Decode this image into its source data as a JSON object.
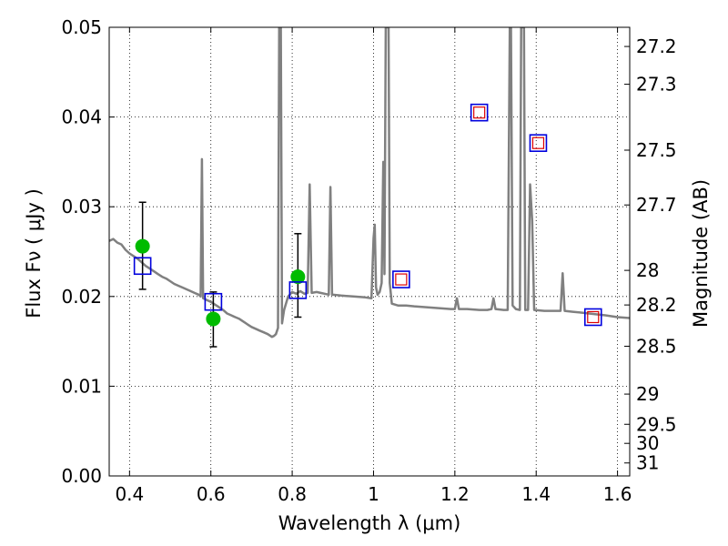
{
  "chart_data": {
    "type": "line",
    "xlabel": "Wavelength  λ (μm)",
    "ylabel": "Flux  Fν  ( μJy )",
    "ylabel_right": "Magnitude (AB)",
    "xlim": [
      0.35,
      1.63
    ],
    "ylim": [
      0.0,
      0.05
    ],
    "grid": true,
    "x_ticks": [
      0.4,
      0.6,
      0.8,
      1.0,
      1.2,
      1.4,
      1.6
    ],
    "x_tick_labels": [
      "0.4",
      "0.6",
      "0.8",
      "1",
      "1.2",
      "1.4",
      "1.6"
    ],
    "y_ticks": [
      0.0,
      0.01,
      0.02,
      0.03,
      0.04,
      0.05
    ],
    "y_tick_labels": [
      "0.00",
      "0.01",
      "0.02",
      "0.03",
      "0.04",
      "0.05"
    ],
    "mag_ticks": [
      {
        "label": "27.2",
        "value": 27.2
      },
      {
        "label": "27.3",
        "value": 27.3
      },
      {
        "label": "27.5",
        "value": 27.5
      },
      {
        "label": "27.7",
        "value": 27.7
      },
      {
        "label": "28",
        "value": 28.0
      },
      {
        "label": "28.2",
        "value": 28.2
      },
      {
        "label": "28.5",
        "value": 28.5
      },
      {
        "label": "29",
        "value": 29.0
      },
      {
        "label": "29.5",
        "value": 29.5
      },
      {
        "label": "30",
        "value": 30.0
      },
      {
        "label": "31",
        "value": 31.0
      }
    ],
    "series": [
      {
        "kind": "line",
        "color": "#808080",
        "points": [
          [
            0.35,
            0.0262
          ],
          [
            0.36,
            0.0264
          ],
          [
            0.37,
            0.026
          ],
          [
            0.38,
            0.0258
          ],
          [
            0.39,
            0.0252
          ],
          [
            0.4,
            0.0248
          ],
          [
            0.41,
            0.0245
          ],
          [
            0.42,
            0.0242
          ],
          [
            0.43,
            0.0238
          ],
          [
            0.44,
            0.0234
          ],
          [
            0.45,
            0.0231
          ],
          [
            0.46,
            0.0228
          ],
          [
            0.47,
            0.0225
          ],
          [
            0.48,
            0.0222
          ],
          [
            0.49,
            0.022
          ],
          [
            0.5,
            0.0217
          ],
          [
            0.51,
            0.0214
          ],
          [
            0.52,
            0.0212
          ],
          [
            0.53,
            0.021
          ],
          [
            0.54,
            0.0208
          ],
          [
            0.55,
            0.0206
          ],
          [
            0.56,
            0.0204
          ],
          [
            0.57,
            0.0202
          ],
          [
            0.575,
            0.02
          ],
          [
            0.578,
            0.0353
          ],
          [
            0.581,
            0.0198
          ],
          [
            0.59,
            0.0196
          ],
          [
            0.6,
            0.0194
          ],
          [
            0.61,
            0.0191
          ],
          [
            0.62,
            0.0188
          ],
          [
            0.63,
            0.0185
          ],
          [
            0.64,
            0.0181
          ],
          [
            0.65,
            0.0179
          ],
          [
            0.66,
            0.0177
          ],
          [
            0.67,
            0.0175
          ],
          [
            0.68,
            0.0172
          ],
          [
            0.69,
            0.0169
          ],
          [
            0.7,
            0.0166
          ],
          [
            0.71,
            0.0164
          ],
          [
            0.72,
            0.0162
          ],
          [
            0.73,
            0.016
          ],
          [
            0.74,
            0.0158
          ],
          [
            0.75,
            0.0155
          ],
          [
            0.755,
            0.0156
          ],
          [
            0.76,
            0.0158
          ],
          [
            0.765,
            0.0165
          ],
          [
            0.768,
            0.05
          ],
          [
            0.772,
            0.05
          ],
          [
            0.775,
            0.017
          ],
          [
            0.78,
            0.0185
          ],
          [
            0.79,
            0.02
          ],
          [
            0.8,
            0.0205
          ],
          [
            0.81,
            0.0203
          ],
          [
            0.82,
            0.0206
          ],
          [
            0.83,
            0.0203
          ],
          [
            0.838,
            0.0204
          ],
          [
            0.843,
            0.0325
          ],
          [
            0.848,
            0.0204
          ],
          [
            0.86,
            0.0205
          ],
          [
            0.87,
            0.0204
          ],
          [
            0.88,
            0.0203
          ],
          [
            0.89,
            0.0202
          ],
          [
            0.894,
            0.0322
          ],
          [
            0.898,
            0.0202
          ],
          [
            0.92,
            0.0201
          ],
          [
            0.95,
            0.02
          ],
          [
            0.98,
            0.0199
          ],
          [
            0.995,
            0.0198
          ],
          [
            1.0,
            0.0265
          ],
          [
            1.003,
            0.028
          ],
          [
            1.006,
            0.021
          ],
          [
            1.01,
            0.0202
          ],
          [
            1.015,
            0.0205
          ],
          [
            1.02,
            0.0215
          ],
          [
            1.024,
            0.035
          ],
          [
            1.027,
            0.0225
          ],
          [
            1.03,
            0.05
          ],
          [
            1.037,
            0.05
          ],
          [
            1.04,
            0.0215
          ],
          [
            1.045,
            0.0192
          ],
          [
            1.06,
            0.019
          ],
          [
            1.08,
            0.019
          ],
          [
            1.1,
            0.0189
          ],
          [
            1.13,
            0.0188
          ],
          [
            1.16,
            0.0187
          ],
          [
            1.19,
            0.0186
          ],
          [
            1.2,
            0.0186
          ],
          [
            1.205,
            0.0198
          ],
          [
            1.21,
            0.0186
          ],
          [
            1.23,
            0.0186
          ],
          [
            1.26,
            0.0185
          ],
          [
            1.28,
            0.0185
          ],
          [
            1.29,
            0.0186
          ],
          [
            1.295,
            0.0198
          ],
          [
            1.3,
            0.0186
          ],
          [
            1.32,
            0.0185
          ],
          [
            1.33,
            0.0185
          ],
          [
            1.335,
            0.05
          ],
          [
            1.338,
            0.05
          ],
          [
            1.342,
            0.019
          ],
          [
            1.35,
            0.0186
          ],
          [
            1.36,
            0.0185
          ],
          [
            1.363,
            0.05
          ],
          [
            1.37,
            0.05
          ],
          [
            1.373,
            0.0185
          ],
          [
            1.38,
            0.0185
          ],
          [
            1.385,
            0.0325
          ],
          [
            1.39,
            0.0285
          ],
          [
            1.395,
            0.0185
          ],
          [
            1.42,
            0.0184
          ],
          [
            1.44,
            0.0184
          ],
          [
            1.46,
            0.0184
          ],
          [
            1.465,
            0.0226
          ],
          [
            1.47,
            0.0184
          ],
          [
            1.49,
            0.0183
          ],
          [
            1.51,
            0.0182
          ],
          [
            1.53,
            0.0181
          ],
          [
            1.55,
            0.018
          ],
          [
            1.57,
            0.0179
          ],
          [
            1.6,
            0.0177
          ],
          [
            1.63,
            0.0176
          ]
        ]
      },
      {
        "kind": "points",
        "marker": "circle",
        "color": "#00bb00",
        "points": [
          {
            "x": 0.432,
            "y": 0.0256,
            "err_low": 0.0048,
            "err_high": 0.0049
          },
          {
            "x": 0.606,
            "y": 0.0175,
            "err_low": 0.0031,
            "err_high": 0.003
          },
          {
            "x": 0.814,
            "y": 0.0222,
            "err_low": 0.0045,
            "err_high": 0.0048
          }
        ]
      },
      {
        "kind": "points",
        "marker": "square",
        "color": "#0000dd",
        "points": [
          {
            "x": 0.432,
            "y": 0.0234
          },
          {
            "x": 0.606,
            "y": 0.0194
          },
          {
            "x": 0.814,
            "y": 0.0207
          },
          {
            "x": 1.068,
            "y": 0.0219
          },
          {
            "x": 1.26,
            "y": 0.0405
          },
          {
            "x": 1.405,
            "y": 0.0371
          },
          {
            "x": 1.54,
            "y": 0.0177
          }
        ]
      },
      {
        "kind": "points",
        "marker": "small-square",
        "color": "#dd0000",
        "points": [
          {
            "x": 1.068,
            "y": 0.0219
          },
          {
            "x": 1.26,
            "y": 0.0405
          },
          {
            "x": 1.405,
            "y": 0.0371
          },
          {
            "x": 1.54,
            "y": 0.0177
          }
        ]
      }
    ]
  }
}
